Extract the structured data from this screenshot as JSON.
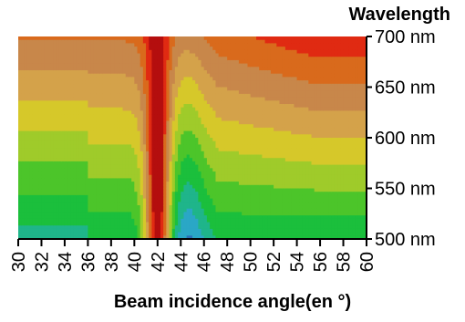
{
  "chart_data": {
    "type": "heatmap",
    "title": "",
    "xlabel": "Beam incidence angle(en °)",
    "ylabel": "Wavelength",
    "x_unit": "°",
    "y_unit": "nm",
    "xlim": [
      30,
      60
    ],
    "ylim": [
      500,
      700
    ],
    "x_ticks": [
      "30",
      "32",
      "34",
      "36",
      "38",
      "40",
      "42",
      "44",
      "46",
      "48",
      "50",
      "52",
      "54",
      "56",
      "58",
      "60"
    ],
    "y_ticks": [
      "500 nm",
      "550 nm",
      "600 nm",
      "650 nm",
      "700 nm"
    ],
    "grid": false,
    "legend": "none",
    "color_scale": [
      "#1c3d8c",
      "#2a6fb8",
      "#2aa7c6",
      "#1fb58a",
      "#1bbf3c",
      "#4cc52a",
      "#9fcb2a",
      "#d6c82a",
      "#d4a24a",
      "#c8874a",
      "#d96a1c",
      "#e02a12",
      "#b40e0e"
    ],
    "contour_levels": 13,
    "features": [
      {
        "label": "resonance peak",
        "angle": 42,
        "wavelength_range": [
          500,
          700
        ]
      }
    ]
  }
}
